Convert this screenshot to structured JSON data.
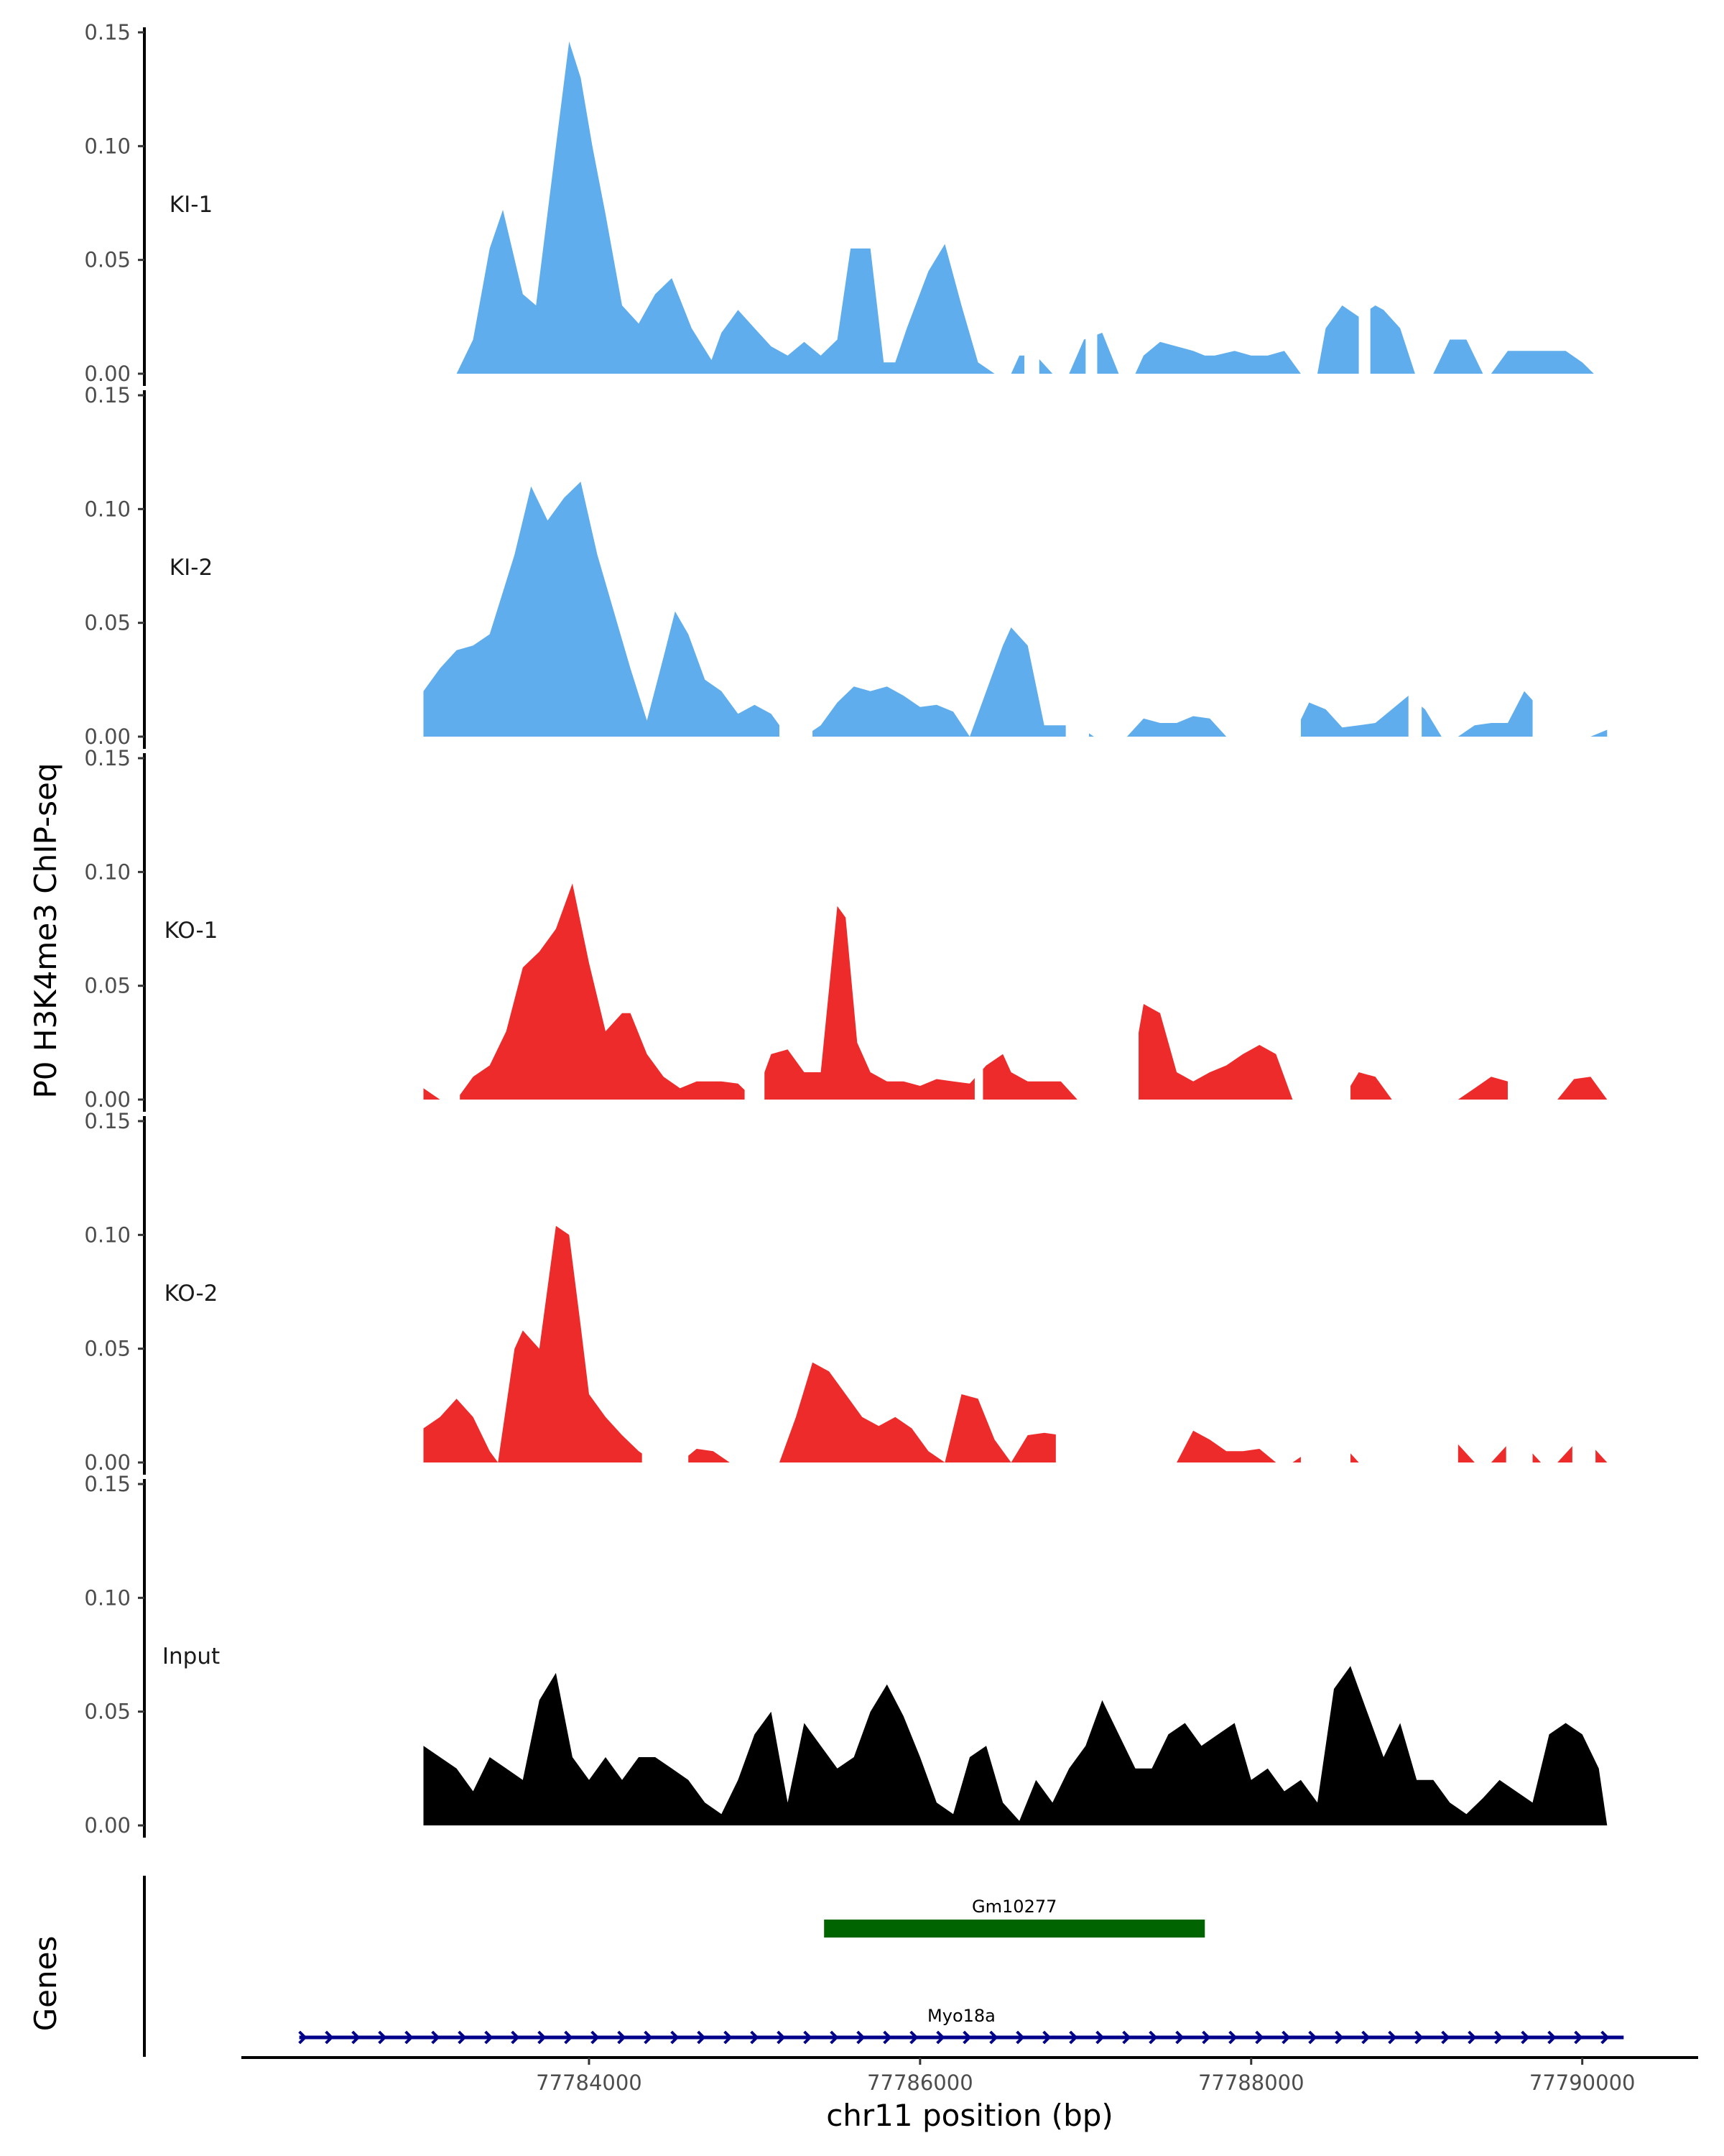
{
  "chart_data": {
    "type": "area",
    "y_axis_title": "P0 H3K4me3 ChIP-seq",
    "genes_axis_title": "Genes",
    "x_axis_title": "chr11 position (bp)",
    "xlim": [
      77781900,
      77790700
    ],
    "ylim": [
      0,
      0.15
    ],
    "y_ticks": [
      "0.00",
      "0.05",
      "0.10",
      "0.15"
    ],
    "x_ticks": [
      {
        "value": 77784000,
        "label": "77784000"
      },
      {
        "value": 77786000,
        "label": "77786000"
      },
      {
        "value": 77788000,
        "label": "77788000"
      },
      {
        "value": 77790000,
        "label": "77790000"
      }
    ],
    "series": [
      {
        "name": "KI-1",
        "color": "#5fadec",
        "x": [
          77783200,
          77783300,
          77783400,
          77783480,
          77783600,
          77783680,
          77783800,
          77783880,
          77783950,
          77784020,
          77784100,
          77784200,
          77784300,
          77784400,
          77784500,
          77784620,
          77784740,
          77784800,
          77784900,
          77785000,
          77785100,
          77785200,
          77785300,
          77785400,
          77785500,
          77785580,
          77785700,
          77785780,
          77785850,
          77785920,
          77786050,
          77786150,
          77786250,
          77786350,
          77786450,
          77786550,
          77786600,
          77786700,
          77786800,
          77786900,
          77786990,
          77787100,
          77787200,
          77787300,
          77787350,
          77787450,
          77787550,
          77787650,
          77787720,
          77787780,
          77787900,
          77788000,
          77788100,
          77788200,
          77788300,
          77788400,
          77788450,
          77788550,
          77788650,
          77788750,
          77788800,
          77788900,
          77788990,
          77789100,
          77789200,
          77789300,
          77789400,
          77789450,
          77789550,
          77789700,
          77789800,
          77789900,
          77790000,
          77790070
        ],
        "values": [
          0,
          0.015,
          0.055,
          0.072,
          0.035,
          0.03,
          0.1,
          0.146,
          0.13,
          0.1,
          0.07,
          0.03,
          0.022,
          0.035,
          0.042,
          0.02,
          0.006,
          0.018,
          0.028,
          0.02,
          0.012,
          0.008,
          0.014,
          0.008,
          0.015,
          0.055,
          0.055,
          0.005,
          0.005,
          0.02,
          0.045,
          0.057,
          0.03,
          0.005,
          0,
          0,
          0.008,
          0.008,
          0,
          0,
          0.015,
          0.018,
          0,
          0,
          0.008,
          0.014,
          0.012,
          0.01,
          0.008,
          0.008,
          0.01,
          0.008,
          0.008,
          0.01,
          0,
          0,
          0.02,
          0.03,
          0.025,
          0.03,
          0.028,
          0.02,
          0,
          0,
          0.015,
          0.015,
          0,
          0,
          0.01,
          0.01,
          0.01,
          0.01,
          0.005,
          0
        ],
        "gaps": [
          [
            77786630,
            77786720
          ],
          [
            77787000,
            77787070
          ],
          [
            77788650,
            77788720
          ]
        ]
      },
      {
        "name": "KI-2",
        "color": "#5fadec",
        "x": [
          77783000,
          77783100,
          77783200,
          77783300,
          77783400,
          77783550,
          77783650,
          77783750,
          77783850,
          77783950,
          77784050,
          77784150,
          77784250,
          77784350,
          77784450,
          77784520,
          77784600,
          77784700,
          77784800,
          77784900,
          77785000,
          77785100,
          77785200,
          77785300,
          77785400,
          77785500,
          77785600,
          77785700,
          77785800,
          77785900,
          77786000,
          77786100,
          77786200,
          77786300,
          77786400,
          77786500,
          77786550,
          77786650,
          77786750,
          77786850,
          77786950,
          77787050,
          77787150,
          77787250,
          77787350,
          77787450,
          77787550,
          77787650,
          77787750,
          77787850,
          77787950,
          77788050,
          77788150,
          77788250,
          77788350,
          77788450,
          77788550,
          77788650,
          77788750,
          77788850,
          77788950,
          77789050,
          77789150,
          77789250,
          77789350,
          77789450,
          77789550,
          77789650,
          77789750,
          77789850,
          77789950,
          77790050,
          77790150
        ],
        "values": [
          0.02,
          0.03,
          0.038,
          0.04,
          0.045,
          0.08,
          0.11,
          0.095,
          0.105,
          0.112,
          0.08,
          0.055,
          0.03,
          0.007,
          0.035,
          0.055,
          0.045,
          0.025,
          0.02,
          0.01,
          0.014,
          0.01,
          0,
          0,
          0.005,
          0.015,
          0.022,
          0.02,
          0.022,
          0.018,
          0.013,
          0.014,
          0.011,
          0,
          0.02,
          0.04,
          0.048,
          0.04,
          0.005,
          0.005,
          0.005,
          0,
          0,
          0,
          0.008,
          0.006,
          0.006,
          0.009,
          0.008,
          0,
          0,
          0,
          0,
          0,
          0.015,
          0.012,
          0.004,
          0.005,
          0.006,
          0.012,
          0.018,
          0.012,
          0,
          0,
          0.005,
          0.006,
          0.006,
          0.02,
          0.012,
          0,
          0,
          0,
          0.003
        ],
        "gaps": [
          [
            77785150,
            77785350
          ],
          [
            77786880,
            77787020
          ],
          [
            77787850,
            77788300
          ],
          [
            77788950,
            77789030
          ],
          [
            77789700,
            77790050
          ]
        ]
      },
      {
        "name": "KO-1",
        "color": "#ee2b2b",
        "x": [
          77783000,
          77783100,
          77783200,
          77783300,
          77783400,
          77783500,
          77783600,
          77783700,
          77783800,
          77783900,
          77784000,
          77784100,
          77784200,
          77784250,
          77784350,
          77784450,
          77784550,
          77784650,
          77784700,
          77784800,
          77784900,
          77785000,
          77785100,
          77785200,
          77785300,
          77785400,
          77785500,
          77785550,
          77785620,
          77785700,
          77785800,
          77785900,
          77786000,
          77786100,
          77786200,
          77786300,
          77786400,
          77786500,
          77786550,
          77786650,
          77786750,
          77786850,
          77786950,
          77787050,
          77787150,
          77787250,
          77787350,
          77787450,
          77787550,
          77787650,
          77787750,
          77787850,
          77787950,
          77788050,
          77788150,
          77788250,
          77788350,
          77788450,
          77788550,
          77788650,
          77788750,
          77788850,
          77788950,
          77789050,
          77789150,
          77789250,
          77789350,
          77789450,
          77789550,
          77789650,
          77789750,
          77789850,
          77789950,
          77790050,
          77790150
        ],
        "values": [
          0.005,
          0,
          0,
          0.01,
          0.015,
          0.03,
          0.058,
          0.065,
          0.075,
          0.095,
          0.06,
          0.03,
          0.038,
          0.038,
          0.02,
          0.01,
          0.005,
          0.008,
          0.008,
          0.008,
          0.007,
          0,
          0.02,
          0.022,
          0.012,
          0.012,
          0.085,
          0.08,
          0.025,
          0.012,
          0.008,
          0.008,
          0.006,
          0.009,
          0.008,
          0.007,
          0.015,
          0.02,
          0.012,
          0.008,
          0.008,
          0.008,
          0,
          0,
          0,
          0,
          0.042,
          0.038,
          0.012,
          0.008,
          0.012,
          0.015,
          0.02,
          0.024,
          0.02,
          0,
          0,
          0,
          0,
          0.012,
          0.01,
          0,
          0,
          0,
          0,
          0,
          0.005,
          0.01,
          0.008,
          0,
          0,
          0,
          0.009,
          0.01,
          0
        ],
        "gaps": [
          [
            77783100,
            77783220
          ],
          [
            77784940,
            77785060
          ],
          [
            77786330,
            77786380
          ],
          [
            77786950,
            77787320
          ],
          [
            77788260,
            77788600
          ],
          [
            77788850,
            77789250
          ],
          [
            77789550,
            77789780
          ]
        ]
      },
      {
        "name": "KO-2",
        "color": "#ee2b2b",
        "x": [
          77783000,
          77783100,
          77783200,
          77783300,
          77783400,
          77783450,
          77783550,
          77783600,
          77783700,
          77783800,
          77783880,
          77783950,
          77784000,
          77784100,
          77784200,
          77784300,
          77784400,
          77784450,
          77784550,
          77784650,
          77784750,
          77784850,
          77784950,
          77785050,
          77785150,
          77785250,
          77785350,
          77785450,
          77785550,
          77785650,
          77785750,
          77785850,
          77785950,
          77786050,
          77786150,
          77786250,
          77786350,
          77786450,
          77786550,
          77786650,
          77786750,
          77786850,
          77786950,
          77787050,
          77787150,
          77787250,
          77787350,
          77787450,
          77787550,
          77787650,
          77787750,
          77787850,
          77787950,
          77788050,
          77788150,
          77788250,
          77788350,
          77788450,
          77788550,
          77788650,
          77788750,
          77788850,
          77788950,
          77789050,
          77789150,
          77789250,
          77789350,
          77789450,
          77789550,
          77789650,
          77789750,
          77789850,
          77789950,
          77790050,
          77790150
        ],
        "values": [
          0.015,
          0.02,
          0.028,
          0.02,
          0.005,
          0,
          0.05,
          0.058,
          0.05,
          0.104,
          0.1,
          0.06,
          0.03,
          0.02,
          0.012,
          0.005,
          0,
          0,
          0,
          0.006,
          0.005,
          0,
          0,
          0,
          0,
          0.02,
          0.044,
          0.04,
          0.03,
          0.02,
          0.016,
          0.02,
          0.015,
          0.005,
          0,
          0.03,
          0.028,
          0.01,
          0,
          0.012,
          0.013,
          0.012,
          0.012,
          0,
          0,
          0,
          0,
          0,
          0,
          0.014,
          0.01,
          0.005,
          0.005,
          0.006,
          0,
          0,
          0.005,
          0.012,
          0.008,
          0,
          0,
          0,
          0,
          0,
          0.008,
          0.008,
          0,
          0,
          0.008,
          0.008,
          0,
          0,
          0.008,
          0.008,
          0
        ],
        "gaps": [
          [
            77784320,
            77784600
          ],
          [
            77784900,
            77785150
          ],
          [
            77786820,
            77787420
          ],
          [
            77788300,
            77788600
          ],
          [
            77788850,
            77789250
          ],
          [
            77789540,
            77789700
          ],
          [
            77789940,
            77790080
          ]
        ]
      },
      {
        "name": "Input",
        "color": "#000000",
        "x": [
          77783000,
          77783100,
          77783200,
          77783300,
          77783400,
          77783500,
          77783600,
          77783700,
          77783800,
          77783900,
          77784000,
          77784100,
          77784200,
          77784300,
          77784400,
          77784500,
          77784600,
          77784700,
          77784800,
          77784900,
          77785000,
          77785100,
          77785200,
          77785300,
          77785400,
          77785500,
          77785600,
          77785700,
          77785800,
          77785900,
          77786000,
          77786100,
          77786200,
          77786300,
          77786400,
          77786500,
          77786600,
          77786700,
          77786800,
          77786900,
          77787000,
          77787100,
          77787200,
          77787300,
          77787400,
          77787500,
          77787600,
          77787700,
          77787800,
          77787900,
          77788000,
          77788100,
          77788200,
          77788300,
          77788400,
          77788500,
          77788600,
          77788700,
          77788800,
          77788900,
          77789000,
          77789100,
          77789200,
          77789300,
          77789400,
          77789500,
          77789600,
          77789700,
          77789800,
          77789900,
          77790000,
          77790100,
          77790150
        ],
        "values": [
          0.035,
          0.03,
          0.025,
          0.015,
          0.03,
          0.025,
          0.02,
          0.055,
          0.067,
          0.03,
          0.02,
          0.03,
          0.02,
          0.03,
          0.03,
          0.025,
          0.02,
          0.01,
          0.005,
          0.02,
          0.04,
          0.05,
          0.01,
          0.045,
          0.035,
          0.025,
          0.03,
          0.05,
          0.062,
          0.048,
          0.03,
          0.01,
          0.005,
          0.03,
          0.035,
          0.01,
          0.002,
          0.02,
          0.01,
          0.025,
          0.035,
          0.055,
          0.04,
          0.025,
          0.025,
          0.04,
          0.045,
          0.035,
          0.04,
          0.045,
          0.02,
          0.025,
          0.015,
          0.02,
          0.01,
          0.06,
          0.07,
          0.05,
          0.03,
          0.045,
          0.02,
          0.02,
          0.01,
          0.005,
          0.012,
          0.02,
          0.015,
          0.01,
          0.04,
          0.045,
          0.04,
          0.025,
          0
        ]
      }
    ],
    "genes": [
      {
        "name": "Gm10277",
        "start": 77785420,
        "end": 77787720,
        "color": "#006400",
        "strand": "",
        "row": 1
      },
      {
        "name": "Myo18a",
        "start": 77782250,
        "end": 77790250,
        "color": "#00008b",
        "strand": "+",
        "row": 2
      }
    ]
  }
}
